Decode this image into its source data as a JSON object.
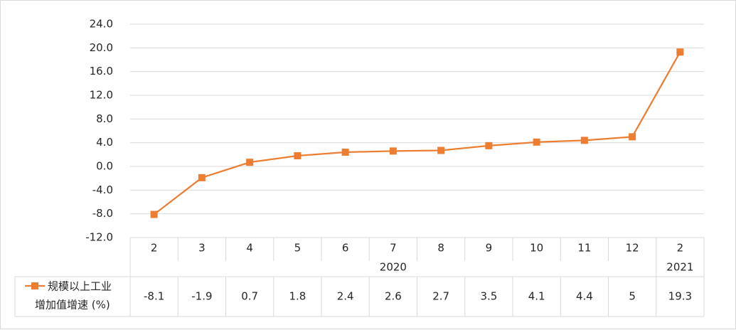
{
  "chart_data": {
    "type": "line",
    "title": "",
    "xlabel": "",
    "ylabel": "",
    "ylim": [
      -12.0,
      24.0
    ],
    "y_ticks": [
      "-12.0",
      "-8.0",
      "-4.0",
      "0.0",
      "4.0",
      "8.0",
      "12.0",
      "16.0",
      "20.0",
      "24.0"
    ],
    "categories": [
      "2",
      "3",
      "4",
      "5",
      "6",
      "7",
      "8",
      "9",
      "10",
      "11",
      "12",
      "2"
    ],
    "year_groups": [
      {
        "label": "2020",
        "count": 11
      },
      {
        "label": "2021",
        "count": 1
      }
    ],
    "series": [
      {
        "name": "规模以上工业增加值增速 (%)",
        "legend_lines": [
          "规模以上工业",
          "增加值增速 (%)"
        ],
        "color": "#ed7d31",
        "marker": "square",
        "values": [
          -8.1,
          -1.9,
          0.7,
          1.8,
          2.4,
          2.6,
          2.7,
          3.5,
          4.1,
          4.4,
          5,
          19.3
        ],
        "value_labels": [
          "-8.1",
          "-1.9",
          "0.7",
          "1.8",
          "2.4",
          "2.6",
          "2.7",
          "3.5",
          "4.1",
          "4.4",
          "5",
          "19.3"
        ]
      }
    ],
    "grid": true,
    "data_table": true,
    "colors": {
      "line": "#ed7d31",
      "grid": "#d9d9d9",
      "text": "#262626"
    }
  }
}
